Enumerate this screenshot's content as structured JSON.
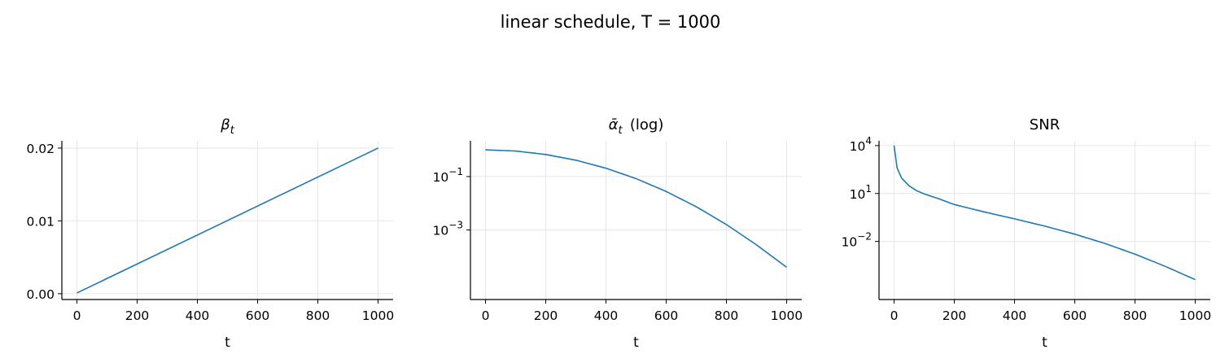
{
  "figure": {
    "title": "linear schedule, T = 1000"
  },
  "chart_data": [
    {
      "type": "line",
      "title": "β_t",
      "xlabel": "t",
      "ylabel": "",
      "xlim": [
        -50,
        1050
      ],
      "ylim": [
        -0.0008,
        0.021
      ],
      "yscale": "linear",
      "xticks": [
        0,
        200,
        400,
        600,
        800,
        1000
      ],
      "xtick_labels": [
        "0",
        "200",
        "400",
        "600",
        "800",
        "1000"
      ],
      "yticks": [
        0.0,
        0.01,
        0.02
      ],
      "ytick_labels": [
        "0.00",
        "0.01",
        "0.02"
      ],
      "grid": true,
      "color": "#1f77b4",
      "series": [
        {
          "x": [
            0,
            1000
          ],
          "y": [
            0.0001,
            0.02
          ]
        }
      ]
    },
    {
      "type": "line",
      "title": "ᾱ_t (log)",
      "xlabel": "t",
      "ylabel": "",
      "xlim": [
        -50,
        1050
      ],
      "ylim": [
        2.5e-06,
        2.18
      ],
      "yscale": "log",
      "xticks": [
        0,
        200,
        400,
        600,
        800,
        1000
      ],
      "xtick_labels": [
        "0",
        "200",
        "400",
        "600",
        "800",
        "1000"
      ],
      "yticks": [
        0.1,
        0.001
      ],
      "ytick_labels": [
        {
          "base": "10",
          "exp": "−1"
        },
        {
          "base": "10",
          "exp": "−3"
        }
      ],
      "grid": true,
      "color": "#1f77b4",
      "series": [
        {
          "x": [
            0,
            100,
            200,
            300,
            400,
            500,
            600,
            700,
            800,
            900,
            1000
          ],
          "y": [
            0.9999,
            0.9039,
            0.6707,
            0.4108,
            0.2056,
            0.0838,
            0.0277,
            0.00742,
            0.0016,
            0.000277,
            4.04e-05
          ]
        }
      ]
    },
    {
      "type": "line",
      "title": "SNR",
      "xlabel": "t",
      "ylabel": "",
      "xlim": [
        -50,
        1050
      ],
      "ylim": [
        2.3e-06,
        20000
      ],
      "yscale": "log",
      "xticks": [
        0,
        200,
        400,
        600,
        800,
        1000
      ],
      "xtick_labels": [
        "0",
        "200",
        "400",
        "600",
        "800",
        "1000"
      ],
      "yticks": [
        10000,
        10,
        0.01
      ],
      "ytick_labels": [
        {
          "base": "10",
          "exp": "4"
        },
        {
          "base": "10",
          "exp": "1"
        },
        {
          "base": "10",
          "exp": "−2"
        }
      ],
      "grid": true,
      "color": "#1f77b4",
      "series": [
        {
          "x": [
            0,
            10,
            25,
            50,
            75,
            100,
            150,
            200,
            300,
            400,
            500,
            600,
            700,
            800,
            900,
            1000
          ],
          "y": [
            9999,
            400,
            92.1,
            30.3,
            15.0,
            9.42,
            4.6,
            2.04,
            0.697,
            0.259,
            0.0915,
            0.0285,
            0.00748,
            0.0016,
            0.000277,
            4.04e-05
          ]
        }
      ]
    }
  ]
}
